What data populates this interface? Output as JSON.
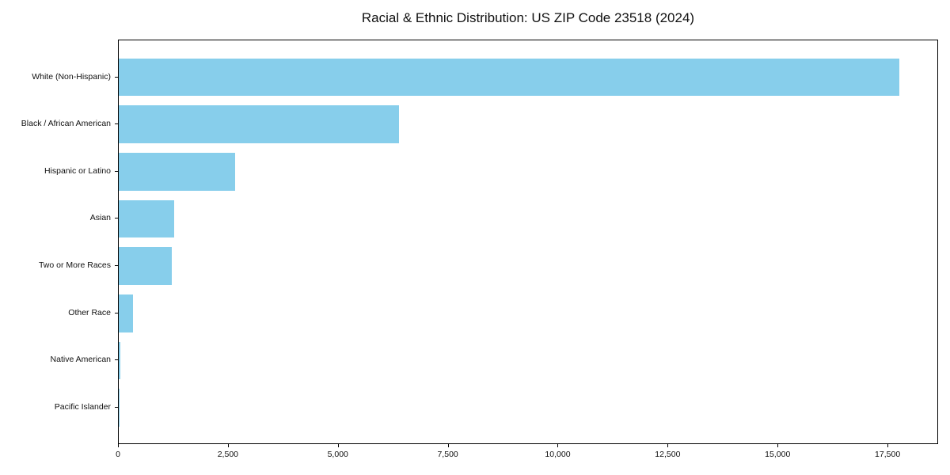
{
  "chart_data": {
    "type": "bar",
    "orientation": "horizontal",
    "title": "Racial & Ethnic Distribution: US ZIP Code 23518 (2024)",
    "categories": [
      "White (Non-Hispanic)",
      "Black / African American",
      "Hispanic or Latino",
      "Asian",
      "Two or More Races",
      "Other Race",
      "Native American",
      "Pacific Islander"
    ],
    "values": [
      17750,
      6380,
      2650,
      1260,
      1210,
      330,
      35,
      15
    ],
    "bar_color": "#87CEEB",
    "xlabel": "",
    "ylabel": "",
    "xlim": [
      0,
      18650
    ],
    "x_ticks": [
      0,
      2500,
      5000,
      7500,
      10000,
      12500,
      15000,
      17500
    ],
    "x_tick_labels": [
      "0",
      "2,500",
      "5,000",
      "7,500",
      "10,000",
      "12,500",
      "15,000",
      "17,500"
    ],
    "grid": false,
    "legend_position": "none",
    "background_color": "#ffffff",
    "frame": "full-box"
  }
}
